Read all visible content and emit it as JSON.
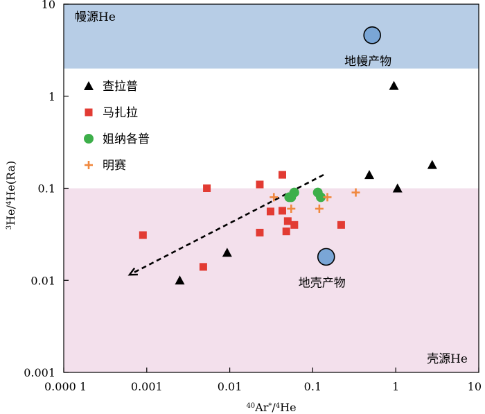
{
  "chart_data": {
    "type": "scatter",
    "x_scale": "log",
    "y_scale": "log",
    "xlim": [
      0.0001,
      10
    ],
    "ylim": [
      0.001,
      10
    ],
    "xlabel_html": [
      "40",
      "Ar",
      "*",
      "/",
      "4",
      "He"
    ],
    "ylabel_html": [
      "3",
      "He/",
      "4",
      "He(Ra)"
    ],
    "x_ticks": [
      {
        "value": 0.0001,
        "label": "0.000 1"
      },
      {
        "value": 0.001,
        "label": "0.001"
      },
      {
        "value": 0.01,
        "label": "0.01"
      },
      {
        "value": 0.1,
        "label": "0.1"
      },
      {
        "value": 1,
        "label": "1"
      },
      {
        "value": 10,
        "label": "10"
      }
    ],
    "y_ticks": [
      {
        "value": 0.001,
        "label": "0.001"
      },
      {
        "value": 0.01,
        "label": "0.01"
      },
      {
        "value": 0.1,
        "label": "0.1"
      },
      {
        "value": 1,
        "label": "1"
      },
      {
        "value": 10,
        "label": "10"
      }
    ],
    "regions": [
      {
        "label": "幔源He",
        "y_range": [
          2,
          10
        ],
        "color": "#b7cde6",
        "label_pos": "top-left"
      },
      {
        "label": "壳源He",
        "y_range": [
          0.001,
          0.1
        ],
        "color": "#f3e0ec",
        "label_pos": "bottom-right"
      }
    ],
    "reference_points": [
      {
        "label": "地幔产物",
        "x": 0.52,
        "y": 4.6,
        "color": "#7aa6d6",
        "label_side": "below"
      },
      {
        "label": "地壳产物",
        "x": 0.145,
        "y": 0.018,
        "color": "#7aa6d6",
        "label_side": "below"
      }
    ],
    "trend_arrow": {
      "from": [
        0.135,
        0.14
      ],
      "to": [
        0.00062,
        0.0115
      ],
      "style": "dashed"
    },
    "legend_position": "left",
    "series": [
      {
        "name": "查拉普",
        "marker": "triangle",
        "color": "#000000",
        "points": [
          [
            0.95,
            1.3
          ],
          [
            0.48,
            0.14
          ],
          [
            1.05,
            0.1
          ],
          [
            2.75,
            0.18
          ],
          [
            0.0093,
            0.02
          ],
          [
            0.0025,
            0.01
          ]
        ]
      },
      {
        "name": "马扎拉",
        "marker": "square",
        "color": "#e23b33",
        "points": [
          [
            0.0009,
            0.031
          ],
          [
            0.0053,
            0.1
          ],
          [
            0.0048,
            0.014
          ],
          [
            0.023,
            0.11
          ],
          [
            0.043,
            0.14
          ],
          [
            0.031,
            0.056
          ],
          [
            0.043,
            0.057
          ],
          [
            0.023,
            0.033
          ],
          [
            0.05,
            0.044
          ],
          [
            0.048,
            0.034
          ],
          [
            0.06,
            0.04
          ],
          [
            0.22,
            0.04
          ]
        ]
      },
      {
        "name": "姐纳各普",
        "marker": "circle",
        "color": "#3daf4a",
        "points": [
          [
            0.052,
            0.08
          ],
          [
            0.055,
            0.08
          ],
          [
            0.06,
            0.09
          ],
          [
            0.115,
            0.09
          ],
          [
            0.125,
            0.08
          ]
        ]
      },
      {
        "name": "明赛",
        "marker": "plus",
        "color": "#f0883e",
        "points": [
          [
            0.034,
            0.08
          ],
          [
            0.055,
            0.06
          ],
          [
            0.12,
            0.06
          ],
          [
            0.15,
            0.08
          ],
          [
            0.33,
            0.09
          ]
        ]
      }
    ]
  }
}
